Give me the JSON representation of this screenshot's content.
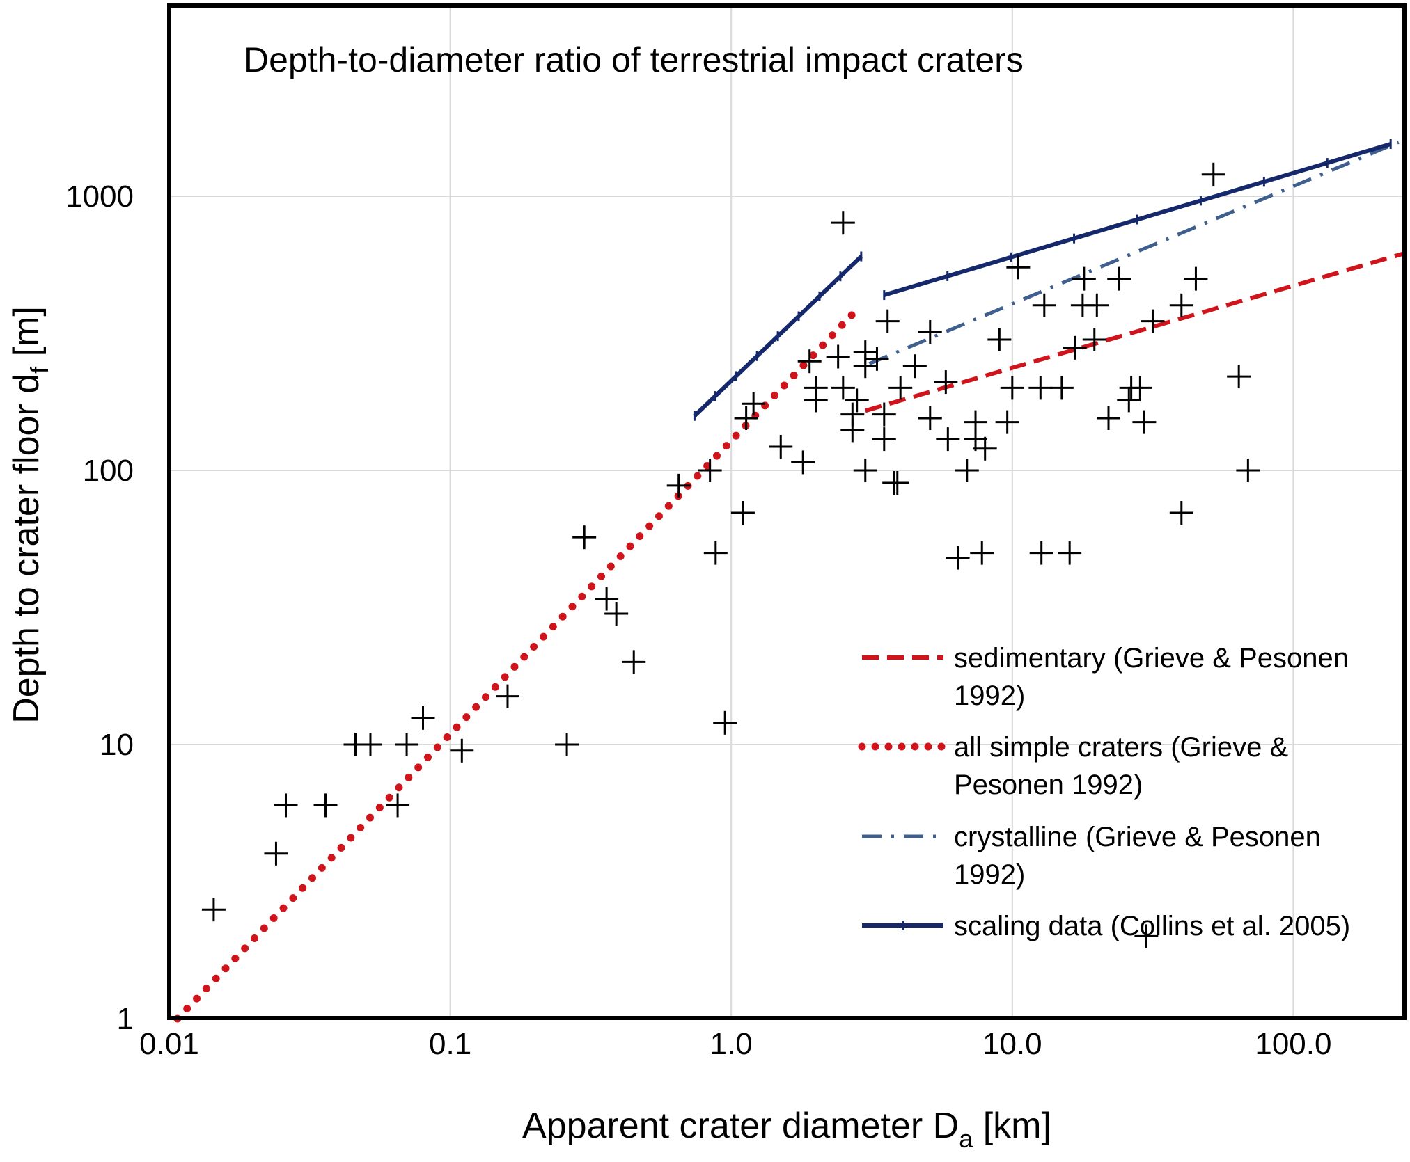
{
  "chart_data": {
    "type": "scatter",
    "title": "Depth-to-diameter ratio of terrestrial impact craters",
    "xlabel": "Apparent crater diameter D",
    "xlabel_sub": "a",
    "xlabel_unit": " [km]",
    "ylabel": "Depth to crater floor d",
    "ylabel_sub": "f",
    "ylabel_unit": " [m]",
    "xscale": "log",
    "yscale": "log",
    "xlim": [
      0.01,
      250
    ],
    "ylim": [
      1,
      3000
    ],
    "grid": true,
    "legend_position": "bottom-right",
    "x_ticks": [
      {
        "value": 0.01,
        "label": "0.01"
      },
      {
        "value": 0.1,
        "label": "0.1"
      },
      {
        "value": 1,
        "label": "1.0"
      },
      {
        "value": 10,
        "label": "10.0"
      },
      {
        "value": 100,
        "label": "100.0"
      }
    ],
    "y_ticks": [
      {
        "value": 1,
        "label": "1"
      },
      {
        "value": 10,
        "label": "10"
      },
      {
        "value": 100,
        "label": "100"
      },
      {
        "value": 1000,
        "label": "1000"
      }
    ],
    "scatter": {
      "name": "terrestrial impact craters",
      "marker": "plus",
      "color": "#000000",
      "points": [
        [
          0.0144,
          2.5
        ],
        [
          0.024,
          4.0
        ],
        [
          0.026,
          6
        ],
        [
          0.036,
          6
        ],
        [
          0.046,
          10
        ],
        [
          0.052,
          10
        ],
        [
          0.065,
          6
        ],
        [
          0.07,
          10
        ],
        [
          0.08,
          12.5
        ],
        [
          0.11,
          9.5
        ],
        [
          0.16,
          15
        ],
        [
          0.26,
          10
        ],
        [
          0.3,
          57
        ],
        [
          0.36,
          34
        ],
        [
          0.39,
          30
        ],
        [
          0.45,
          20
        ],
        [
          0.65,
          88
        ],
        [
          0.84,
          100
        ],
        [
          0.88,
          50
        ],
        [
          0.95,
          12
        ],
        [
          1.1,
          70
        ],
        [
          1.13,
          155
        ],
        [
          1.2,
          175
        ],
        [
          1.5,
          122
        ],
        [
          1.8,
          107
        ],
        [
          1.9,
          250
        ],
        [
          2.0,
          200
        ],
        [
          2.0,
          180
        ],
        [
          2.5,
          800
        ],
        [
          2.4,
          260
        ],
        [
          2.5,
          200
        ],
        [
          2.7,
          160
        ],
        [
          2.7,
          140
        ],
        [
          2.8,
          180
        ],
        [
          3.0,
          100
        ],
        [
          3.0,
          270
        ],
        [
          3.0,
          240
        ],
        [
          3.3,
          255
        ],
        [
          3.6,
          350
        ],
        [
          3.5,
          160
        ],
        [
          3.5,
          130
        ],
        [
          3.8,
          90
        ],
        [
          3.9,
          90
        ],
        [
          4.0,
          200
        ],
        [
          4.5,
          240
        ],
        [
          5.1,
          320
        ],
        [
          5.1,
          155
        ],
        [
          5.8,
          210
        ],
        [
          5.9,
          130
        ],
        [
          6.4,
          48
        ],
        [
          6.9,
          100
        ],
        [
          7.4,
          150
        ],
        [
          7.4,
          130
        ],
        [
          7.8,
          50
        ],
        [
          8.0,
          120
        ],
        [
          9.0,
          300
        ],
        [
          9.6,
          150
        ],
        [
          10.0,
          200
        ],
        [
          10.5,
          550
        ],
        [
          12.7,
          50
        ],
        [
          13,
          400
        ],
        [
          12.6,
          200
        ],
        [
          15,
          200
        ],
        [
          16,
          50
        ],
        [
          16.7,
          280
        ],
        [
          17.8,
          400
        ],
        [
          18,
          500
        ],
        [
          20,
          400
        ],
        [
          19.6,
          300
        ],
        [
          22,
          155
        ],
        [
          24,
          500
        ],
        [
          26,
          180
        ],
        [
          26.5,
          200
        ],
        [
          28.5,
          200
        ],
        [
          29.5,
          150
        ],
        [
          30,
          2
        ],
        [
          31.6,
          350
        ],
        [
          40,
          400
        ],
        [
          40,
          70
        ],
        [
          45,
          500
        ],
        [
          52,
          1200
        ],
        [
          64,
          220
        ],
        [
          69,
          100
        ]
      ]
    },
    "series": [
      {
        "name": "sedimentary (Grieve & Pesonen 1992)",
        "legend_lines": [
          "sedimentary (Grieve & Pesonen",
          "1992)"
        ],
        "style": "dashed",
        "color": "#d0141c",
        "points": [
          [
            3.0,
            165
          ],
          [
            250,
            620
          ]
        ]
      },
      {
        "name": "all simple craters (Grieve & Pesonen 1992)",
        "legend_lines": [
          "all simple craters (Grieve &",
          "Pesonen 1992)"
        ],
        "style": "dotted",
        "color": "#d0141c",
        "points": [
          [
            0.0107,
            1
          ],
          [
            2.74,
            377
          ]
        ]
      },
      {
        "name": "crystalline (Grieve & Pesonen 1992)",
        "legend_lines": [
          "crystalline (Grieve & Pesonen",
          "1992)"
        ],
        "style": "dash-dot",
        "color": "#3f5f8f",
        "points": [
          [
            3.1,
            245
          ],
          [
            237,
            1574
          ]
        ]
      },
      {
        "name": "scaling data (Collins et al. 2005)",
        "legend_lines": [
          "scaling data (Collins et al. 2005)"
        ],
        "style": "solid-marker",
        "color": "#14286b",
        "segments": [
          [
            [
              0.74,
              158
            ],
            [
              2.9,
              603
            ]
          ],
          [
            [
              3.5,
              436
            ],
            [
              222,
              1550
            ]
          ]
        ]
      }
    ]
  }
}
